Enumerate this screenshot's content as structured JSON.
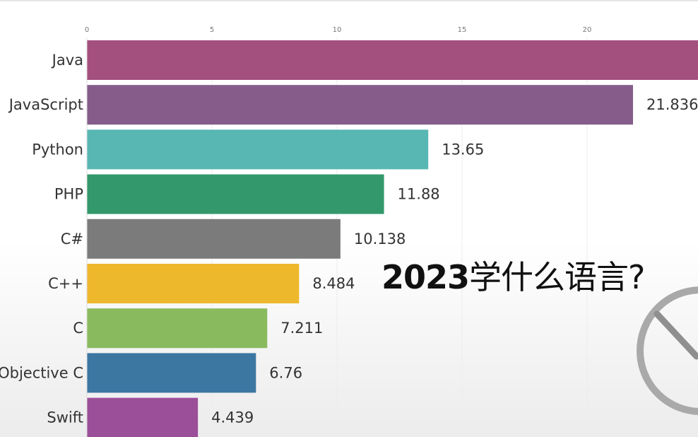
{
  "overlay": {
    "year": "2023",
    "question": "学什么语言?"
  },
  "chart_data": {
    "type": "bar",
    "orientation": "horizontal",
    "title": "",
    "xlabel": "",
    "ylabel": "",
    "xlim": [
      0,
      24.5
    ],
    "x_ticks": [
      0,
      5,
      10,
      15,
      20
    ],
    "grid": true,
    "categories": [
      "Java",
      "JavaScript",
      "Python",
      "PHP",
      "C#",
      "C++",
      "C",
      "Objective C",
      "Swift"
    ],
    "values": [
      24.5,
      21.836,
      13.65,
      11.88,
      10.138,
      8.484,
      7.211,
      6.76,
      4.439
    ],
    "value_labels": [
      "",
      "21.836",
      "13.65",
      "11.88",
      "10.138",
      "8.484",
      "7.211",
      "6.76",
      "4.439"
    ],
    "colors": [
      "#a4507f",
      "#855c8a",
      "#58b6b3",
      "#33986b",
      "#7b7b7b",
      "#eeb82d",
      "#8aba5e",
      "#3c77a1",
      "#9b4f99"
    ]
  },
  "icons": {
    "timer": "stopwatch-icon"
  }
}
